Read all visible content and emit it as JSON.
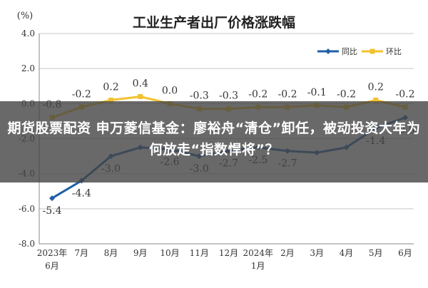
{
  "chart_data": {
    "type": "line",
    "title": "工业生产者出厂价格涨跌幅",
    "unit_label": "(%)",
    "ylim": [
      -8.0,
      4.0
    ],
    "y_ticks": [
      "4.0",
      "2.0",
      "0.0",
      "-2.0",
      "-4.0",
      "-6.0",
      "-8.0"
    ],
    "y_tick_values": [
      4,
      2,
      0,
      -2,
      -4,
      -6,
      -8
    ],
    "categories": [
      {
        "line1": "2023年",
        "line2": "6月"
      },
      {
        "line1": "7月",
        "line2": ""
      },
      {
        "line1": "8月",
        "line2": ""
      },
      {
        "line1": "9月",
        "line2": ""
      },
      {
        "line1": "10月",
        "line2": ""
      },
      {
        "line1": "11月",
        "line2": ""
      },
      {
        "line1": "12月",
        "line2": ""
      },
      {
        "line1": "2024年",
        "line2": "1月"
      },
      {
        "line1": "2月",
        "line2": ""
      },
      {
        "line1": "3月",
        "line2": ""
      },
      {
        "line1": "4月",
        "line2": ""
      },
      {
        "line1": "5月",
        "line2": ""
      },
      {
        "line1": "6月",
        "line2": ""
      }
    ],
    "series": [
      {
        "name": "同比",
        "color": "#1f5fa8",
        "values": [
          -5.4,
          -4.4,
          -3.0,
          -2.5,
          -2.6,
          -3.0,
          -2.7,
          -2.5,
          -2.7,
          -2.8,
          -2.5,
          -1.4,
          -0.8
        ],
        "labels": [
          "-5.4",
          "-4.4",
          "-3.0",
          "",
          "-2.6",
          "-3.0",
          "-2.7",
          "-2.5",
          "-2.7",
          "",
          "",
          "-1.4",
          "-0.8"
        ]
      },
      {
        "name": "环比",
        "color": "#f2c12e",
        "values": [
          -0.8,
          -0.2,
          0.2,
          0.4,
          0.0,
          -0.3,
          -0.3,
          -0.2,
          -0.2,
          -0.1,
          -0.2,
          0.2,
          -0.2
        ],
        "labels": [
          "-0.8",
          "-0.2",
          "0.2",
          "0.4",
          "0.0",
          "-0.3",
          "-0.3",
          "-0.2",
          "-0.2",
          "-0.1",
          "-0.2",
          "0.2",
          "-0.2"
        ]
      }
    ],
    "legend_position": "top-right",
    "grid": "horizontal"
  },
  "overlay": {
    "headline": "期货股票配资 申万菱信基金：廖裕舟“清仓”卸任，被动投资大年为何放走“指数悍将”？"
  }
}
